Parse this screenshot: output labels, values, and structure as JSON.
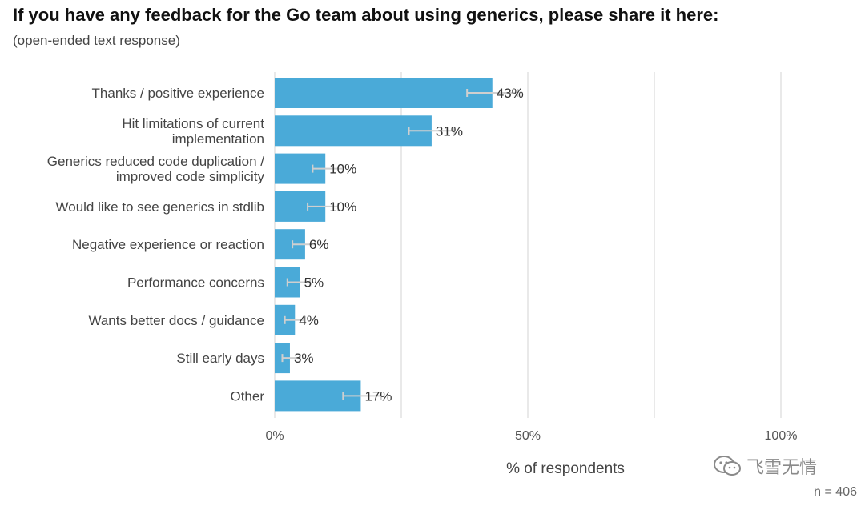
{
  "title": "If you have any feedback for the Go team about using generics, please share it here:",
  "subtitle": "(open-ended text response)",
  "watermark": "飞雪无情",
  "n_label": "n =  406",
  "chart_data": {
    "type": "bar",
    "orientation": "horizontal",
    "categories": [
      [
        "Thanks / positive experience"
      ],
      [
        "Hit limitations of current",
        "implementation"
      ],
      [
        "Generics reduced code duplication /",
        "improved code simplicity"
      ],
      [
        "Would like to see generics in stdlib"
      ],
      [
        "Negative experience or reaction"
      ],
      [
        "Performance concerns"
      ],
      [
        "Wants better docs / guidance"
      ],
      [
        "Still early days"
      ],
      [
        "Other"
      ]
    ],
    "values": [
      43,
      31,
      10,
      10,
      6,
      5,
      4,
      3,
      17
    ],
    "value_labels": [
      "43%",
      "31%",
      "10%",
      "10%",
      "6%",
      "5%",
      "4%",
      "3%",
      "17%"
    ],
    "error_bars": [
      [
        38,
        48
      ],
      [
        26.5,
        35.5
      ],
      [
        7.5,
        13.5
      ],
      [
        6.5,
        12.5
      ],
      [
        3.5,
        8
      ],
      [
        2.5,
        7
      ],
      [
        2,
        6
      ],
      [
        1.5,
        5
      ],
      [
        13.5,
        21
      ]
    ],
    "xlim": [
      0,
      100
    ],
    "xticks": [
      0,
      50,
      100
    ],
    "xtick_labels": [
      "0%",
      "50%",
      "100%"
    ],
    "xlabel": "% of respondents",
    "grid": true,
    "colors": {
      "bar": "#4aaad8",
      "error": "#cfcfcf",
      "grid": "#e2e2e2"
    }
  }
}
